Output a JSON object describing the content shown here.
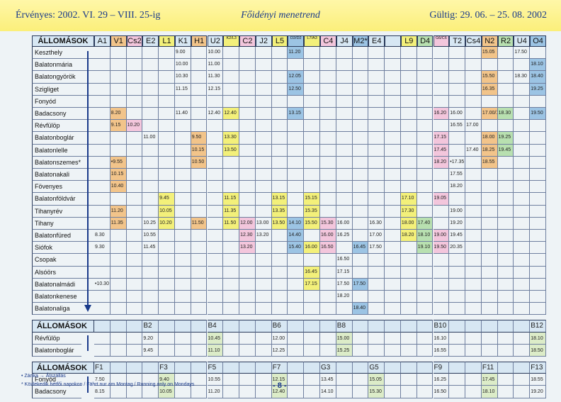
{
  "header": {
    "validity_left": "Érvényes: 2002. VI. 29 – VIII. 25-ig",
    "title": "Főidényi menetrend",
    "validity_right": "Gültig: 29. 06. – 25. 08. 2002"
  },
  "main_table": {
    "corner_label": "ÁLLOMÁSOK",
    "columns": [
      "A1",
      "V1",
      "Cs2",
      "E2",
      "L1",
      "K1",
      "H1",
      "U2",
      "K2/L3",
      "C2",
      "J2",
      "L5",
      "D2/D2",
      "L7/A3",
      "C4",
      "J4",
      "M2*",
      "E4",
      "",
      "L9",
      "D4",
      "G6/C6",
      "T2",
      "Cs4",
      "N2",
      "R2",
      "U4",
      "O4"
    ],
    "stations": [
      "Keszthely",
      "Balatonmária",
      "Balatongyörök",
      "Szigliget",
      "Fonyód",
      "Badacsony",
      "Révfülöp",
      "Balatonboglár",
      "Balatonlelle",
      "Balatonszemes*",
      "Balatonakali",
      "Fövenyes",
      "Balatonföldvár",
      "Tihanyrév",
      "Tihany",
      "Balatonfüred",
      "Siófok",
      "Csopak",
      "Alsóörs",
      "Balatonalmádi",
      "Balatonkenese",
      "Balatonaliga"
    ],
    "times": [
      [
        "",
        "",
        "",
        "",
        "",
        "9.00",
        "",
        "10.00",
        "",
        "",
        "",
        "",
        "11.20",
        "",
        "",
        "",
        "",
        "",
        "",
        "",
        "",
        "",
        "",
        "",
        "15.05",
        "",
        "17.50",
        ""
      ],
      [
        "",
        "",
        "",
        "",
        "",
        "10.00",
        "",
        "11.00",
        "",
        "",
        "",
        "",
        "",
        "",
        "",
        "",
        "",
        "",
        "",
        "",
        "",
        "",
        "",
        "",
        "",
        "",
        "",
        "18.10"
      ],
      [
        "",
        "",
        "",
        "",
        "",
        "10.30",
        "",
        "11.30",
        "",
        "",
        "",
        "",
        "12.05",
        "",
        "",
        "",
        "",
        "",
        "",
        "",
        "",
        "",
        "",
        "",
        "15.50",
        "",
        "18.30",
        "18.40"
      ],
      [
        "",
        "",
        "",
        "",
        "",
        "11.15",
        "",
        "12.15",
        "",
        "",
        "",
        "",
        "12.50",
        "",
        "",
        "",
        "",
        "",
        "",
        "",
        "",
        "",
        "",
        "",
        "16.35",
        "",
        "",
        "19.25"
      ],
      [
        "",
        "",
        "",
        "",
        "",
        "",
        "",
        "",
        "",
        "",
        "",
        "",
        "",
        "",
        "",
        "",
        "",
        "",
        "",
        "",
        "",
        "",
        "",
        "",
        "",
        "",
        "",
        ""
      ],
      [
        "",
        "8.20",
        "",
        "",
        "",
        "11.40",
        "",
        "12.40",
        "12.40",
        "",
        "",
        "",
        "13.15",
        "",
        "",
        "",
        "",
        "",
        "",
        "",
        "",
        "16.20",
        "16.00",
        "",
        "17.00/17.10",
        "18.30",
        "",
        "19.50"
      ],
      [
        "",
        "9.15",
        "10.20",
        "",
        "",
        "",
        "",
        "",
        "",
        "",
        "",
        "",
        "",
        "",
        "",
        "",
        "",
        "",
        "",
        "",
        "",
        "",
        "16.55",
        "17.00",
        "",
        "",
        "",
        ""
      ],
      [
        "",
        "",
        "",
        "11.00",
        "",
        "",
        "9.50",
        "",
        "13.30",
        "",
        "",
        "",
        "",
        "",
        "",
        "",
        "",
        "",
        "",
        "",
        "",
        "17.15",
        "",
        "",
        "18.00",
        "19.25",
        "",
        ""
      ],
      [
        "",
        "",
        "",
        "",
        "",
        "",
        "10.15",
        "",
        "13.50",
        "",
        "",
        "",
        "",
        "",
        "",
        "",
        "",
        "",
        "",
        "",
        "",
        "17.45",
        "",
        "17.40",
        "18.25",
        "19.45",
        "",
        ""
      ],
      [
        "",
        "•9.55",
        "",
        "",
        "",
        "",
        "10.50",
        "",
        "",
        "",
        "",
        "",
        "",
        "",
        "",
        "",
        "",
        "",
        "",
        "",
        "",
        "18.20",
        "•17.35",
        "",
        "18.55",
        "",
        "",
        ""
      ],
      [
        "",
        "10.15",
        "",
        "",
        "",
        "",
        "",
        "",
        "",
        "",
        "",
        "",
        "",
        "",
        "",
        "",
        "",
        "",
        "",
        "",
        "",
        "",
        "17.55",
        "",
        "",
        "",
        "",
        ""
      ],
      [
        "",
        "10.40",
        "",
        "",
        "",
        "",
        "",
        "",
        "",
        "",
        "",
        "",
        "",
        "",
        "",
        "",
        "",
        "",
        "",
        "",
        "",
        "",
        "18.20",
        "",
        "",
        "",
        "",
        ""
      ],
      [
        "",
        "",
        "",
        "",
        "9.45",
        "",
        "",
        "",
        "11.15",
        "",
        "",
        "13.15",
        "",
        "15.15",
        "",
        "",
        "",
        "",
        "",
        "17.10",
        "",
        "19.05",
        "",
        "",
        "",
        "",
        "",
        ""
      ],
      [
        "",
        "11.20",
        "",
        "",
        "10.05",
        "",
        "",
        "",
        "11.35",
        "",
        "",
        "13.35",
        "",
        "15.35",
        "",
        "",
        "",
        "",
        "",
        "17.30",
        "",
        "",
        "19.00",
        "",
        "",
        "",
        "",
        ""
      ],
      [
        "",
        "11.35",
        "",
        "10.25",
        "10.20",
        "",
        "11.50",
        "",
        "11.50",
        "12.00",
        "13.00",
        "13.50",
        "14.10",
        "15.50",
        "15.30",
        "16.00",
        "",
        "16.30",
        "",
        "18.00",
        "17.40",
        "",
        "19.20",
        "",
        "",
        "",
        "",
        ""
      ],
      [
        "8.30",
        "",
        "",
        "10.55",
        "",
        "",
        "",
        "",
        "",
        "12.30",
        "13.20",
        "",
        "14.40",
        "",
        "16.00",
        "16.25",
        "",
        "17.00",
        "",
        "18.20",
        "18.10",
        "19.00",
        "19.45",
        "",
        "",
        "",
        "",
        ""
      ],
      [
        "9.30",
        "",
        "",
        "11.45",
        "",
        "",
        "",
        "",
        "",
        "13.20",
        "",
        "",
        "15.40",
        "16.00",
        "16.50",
        "",
        "16.45",
        "17.50",
        "",
        "",
        "19.10",
        "19.50",
        "20.35",
        "",
        "",
        "",
        "",
        ""
      ],
      [
        "",
        "",
        "",
        "",
        "",
        "",
        "",
        "",
        "",
        "",
        "",
        "",
        "",
        "",
        "",
        "16.50",
        "",
        "",
        "",
        "",
        "",
        "",
        "",
        "",
        "",
        "",
        "",
        ""
      ],
      [
        "",
        "",
        "",
        "",
        "",
        "",
        "",
        "",
        "",
        "",
        "",
        "",
        "",
        "16.45",
        "",
        "17.15",
        "",
        "",
        "",
        "",
        "",
        "",
        "",
        "",
        "",
        "",
        "",
        ""
      ],
      [
        "•10.30",
        "",
        "",
        "",
        "",
        "",
        "",
        "",
        "",
        "",
        "",
        "",
        "",
        "17.15",
        "",
        "17.50",
        "17.50",
        "",
        "",
        "",
        "",
        "",
        "",
        "",
        "",
        "",
        "",
        ""
      ],
      [
        "",
        "",
        "",
        "",
        "",
        "",
        "",
        "",
        "",
        "",
        "",
        "",
        "",
        "",
        "",
        "18.20",
        "",
        "",
        "",
        "",
        "",
        "",
        "",
        "",
        "",
        "",
        "",
        ""
      ],
      [
        "",
        "",
        "",
        "",
        "",
        "",
        "",
        "",
        "",
        "",
        "",
        "",
        "",
        "",
        "",
        "",
        "18.40",
        "",
        "",
        "",
        "",
        "",
        "",
        "",
        "",
        "",
        "",
        ""
      ]
    ]
  },
  "ferry_b": {
    "label": "ÁLLOMÁSOK",
    "stations": [
      "Révfülöp",
      "Balatonboglár"
    ],
    "columns": [
      {
        "name": "B2",
        "times": [
          "9.20",
          "9.45"
        ]
      },
      {
        "name": "B4",
        "times": [
          "10.45",
          "11.10"
        ]
      },
      {
        "name": "B6",
        "times": [
          "12.00",
          "12.25"
        ]
      },
      {
        "name": "B8",
        "times": [
          "15.00",
          "15.25"
        ]
      },
      {
        "name": "B10",
        "times": [
          "16.10",
          "16.55"
        ]
      },
      {
        "name": "B12",
        "times": [
          "18.10",
          "18.50"
        ]
      }
    ]
  },
  "ferry_f": {
    "label": "ÁLLOMÁSOK",
    "stations": [
      "Fonyód",
      "Badacsony"
    ],
    "columns": [
      {
        "name": "F1",
        "times": [
          "7.50",
          "8.15"
        ]
      },
      {
        "name": "F3",
        "times": [
          "9.40",
          "10.05"
        ]
      },
      {
        "name": "F5",
        "times": [
          "10.55",
          "11.20"
        ]
      },
      {
        "name": "F7",
        "times": [
          "12.15",
          "12.40"
        ]
      },
      {
        "name": "G3",
        "times": [
          "13.45",
          "14.10"
        ]
      },
      {
        "name": "G5",
        "times": [
          "15.05",
          "15.30"
        ]
      },
      {
        "name": "F9",
        "times": [
          "16.25",
          "16.50"
        ]
      },
      {
        "name": "F11",
        "times": [
          "17.45",
          "18.10"
        ]
      },
      {
        "name": "F13",
        "times": [
          "18.55",
          "19.20"
        ]
      }
    ]
  },
  "footer": {
    "legend_1": "• Zánka → Átszállás",
    "legend_2": "* Közlekedik hétfői napokon / Fährt nur am Montag / Running only on Mondays",
    "page_number": "- 8 -"
  },
  "colors": {
    "yellow": "#f3f07a",
    "orange": "#f2c48a",
    "pink": "#f3c6dc",
    "blue": "#9cc4e4",
    "green": "#b8e0b0",
    "header_band": "#fbef7a",
    "ink_blue": "#1a3a8a"
  }
}
